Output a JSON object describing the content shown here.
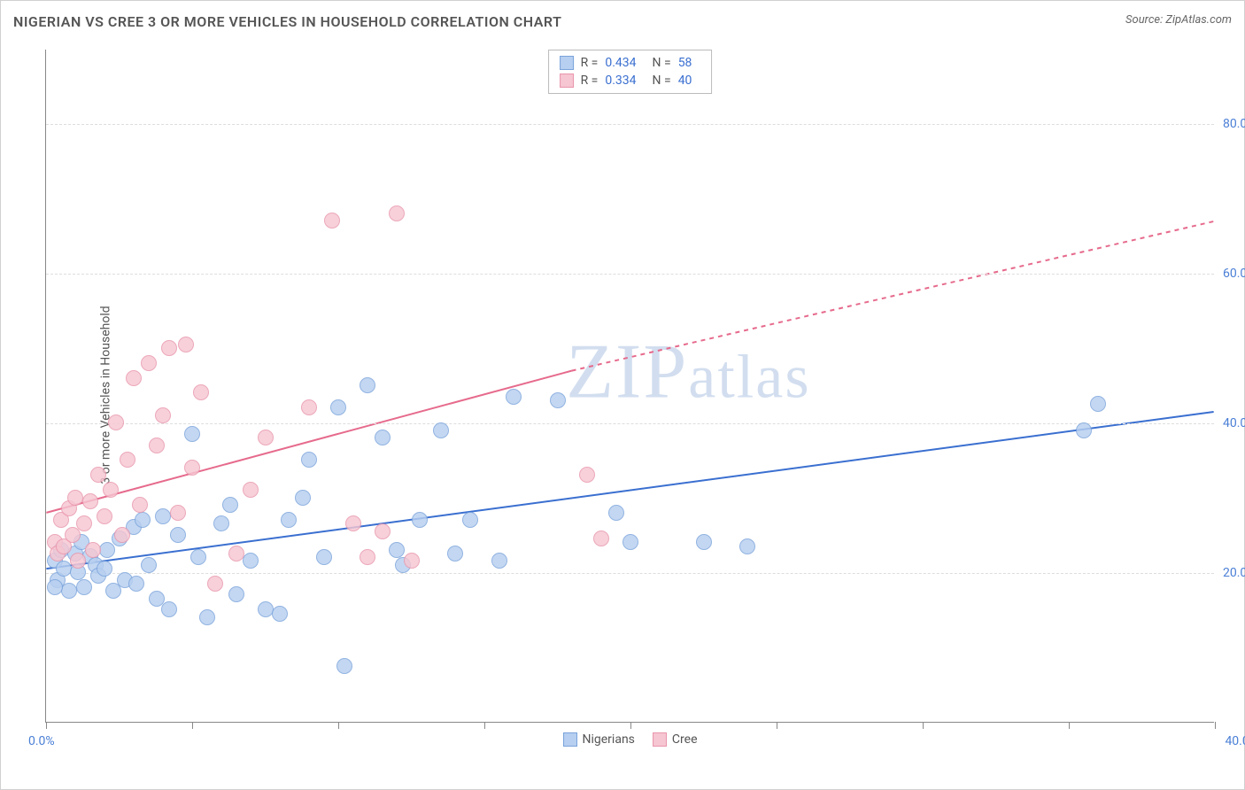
{
  "title": "NIGERIAN VS CREE 3 OR MORE VEHICLES IN HOUSEHOLD CORRELATION CHART",
  "source": "Source: ZipAtlas.com",
  "watermark": "ZIPatlas",
  "chart": {
    "type": "scatter",
    "ylabel": "3 or more Vehicles in Household",
    "xlim": [
      0,
      40
    ],
    "ylim": [
      0,
      90
    ],
    "xtick_step_minor": 5,
    "xtick_labels": {
      "0": "0.0%",
      "40": "40.0%"
    },
    "ytick_positions": [
      20,
      40,
      60,
      80
    ],
    "ytick_labels": [
      "20.0%",
      "40.0%",
      "60.0%",
      "80.0%"
    ],
    "grid_color": "#e5e5e5",
    "axis_color": "#888888",
    "background_color": "#ffffff",
    "label_color": "#4a7fd6",
    "title_color": "#555555",
    "series": [
      {
        "name": "Nigerians",
        "color_fill": "#b7cff0",
        "color_stroke": "#7aa3db",
        "r_label": "R =",
        "r_value": "0.434",
        "n_label": "N =",
        "n_value": "58",
        "trend": {
          "x1": 0,
          "y1": 20.5,
          "x2": 40,
          "y2": 41.5,
          "color": "#3a6fd0",
          "width": 2,
          "dash_after_x": 40
        },
        "point_radius": 9,
        "points": [
          [
            0.3,
            21.5
          ],
          [
            0.4,
            19
          ],
          [
            0.5,
            23
          ],
          [
            0.6,
            20.5
          ],
          [
            0.8,
            17.5
          ],
          [
            1.0,
            22.5
          ],
          [
            1.1,
            20
          ],
          [
            1.2,
            24
          ],
          [
            1.3,
            18
          ],
          [
            1.5,
            22.2
          ],
          [
            1.7,
            21
          ],
          [
            1.8,
            19.5
          ],
          [
            2.0,
            20.5
          ],
          [
            2.1,
            23
          ],
          [
            2.3,
            17.5
          ],
          [
            2.5,
            24.5
          ],
          [
            2.7,
            19
          ],
          [
            3.0,
            26
          ],
          [
            3.1,
            18.5
          ],
          [
            3.3,
            27
          ],
          [
            3.5,
            21
          ],
          [
            3.8,
            16.5
          ],
          [
            4.0,
            27.5
          ],
          [
            4.2,
            15
          ],
          [
            4.5,
            25
          ],
          [
            5.0,
            38.5
          ],
          [
            5.2,
            22
          ],
          [
            5.5,
            14
          ],
          [
            6.0,
            26.5
          ],
          [
            6.3,
            29
          ],
          [
            6.5,
            17
          ],
          [
            7.0,
            21.5
          ],
          [
            7.5,
            15
          ],
          [
            8.0,
            14.5
          ],
          [
            8.3,
            27
          ],
          [
            8.8,
            30
          ],
          [
            9.0,
            35
          ],
          [
            9.5,
            22
          ],
          [
            10.0,
            42
          ],
          [
            10.2,
            7.5
          ],
          [
            11.0,
            45
          ],
          [
            11.5,
            38
          ],
          [
            12.0,
            23
          ],
          [
            12.2,
            21
          ],
          [
            12.8,
            27
          ],
          [
            13.5,
            39
          ],
          [
            14.0,
            22.5
          ],
          [
            14.5,
            27
          ],
          [
            15.5,
            21.5
          ],
          [
            16.0,
            43.5
          ],
          [
            17.5,
            43
          ],
          [
            19.5,
            28
          ],
          [
            20.0,
            24
          ],
          [
            22.5,
            24
          ],
          [
            24.0,
            23.5
          ],
          [
            35.5,
            39
          ],
          [
            36.0,
            42.5
          ],
          [
            0.3,
            18
          ]
        ]
      },
      {
        "name": "Cree",
        "color_fill": "#f6c6d2",
        "color_stroke": "#e995ab",
        "r_label": "R =",
        "r_value": "0.334",
        "n_label": "N =",
        "n_value": "40",
        "trend": {
          "x1": 0,
          "y1": 28,
          "x2": 18,
          "y2": 47,
          "dash_x2": 40,
          "dash_y2": 67,
          "color": "#e66a8c",
          "width": 2
        },
        "point_radius": 9,
        "points": [
          [
            0.3,
            24
          ],
          [
            0.4,
            22.5
          ],
          [
            0.5,
            27
          ],
          [
            0.6,
            23.5
          ],
          [
            0.8,
            28.5
          ],
          [
            0.9,
            25
          ],
          [
            1.0,
            30
          ],
          [
            1.1,
            21.5
          ],
          [
            1.3,
            26.5
          ],
          [
            1.5,
            29.5
          ],
          [
            1.6,
            23
          ],
          [
            1.8,
            33
          ],
          [
            2.0,
            27.5
          ],
          [
            2.2,
            31
          ],
          [
            2.4,
            40
          ],
          [
            2.6,
            25
          ],
          [
            2.8,
            35
          ],
          [
            3.0,
            46
          ],
          [
            3.2,
            29
          ],
          [
            3.5,
            48
          ],
          [
            3.8,
            37
          ],
          [
            4.0,
            41
          ],
          [
            4.2,
            50
          ],
          [
            4.5,
            28
          ],
          [
            4.8,
            50.5
          ],
          [
            5.0,
            34
          ],
          [
            5.3,
            44
          ],
          [
            5.8,
            18.5
          ],
          [
            6.5,
            22.5
          ],
          [
            7.0,
            31
          ],
          [
            7.5,
            38
          ],
          [
            9.0,
            42
          ],
          [
            9.8,
            67
          ],
          [
            10.5,
            26.5
          ],
          [
            11.0,
            22
          ],
          [
            11.5,
            25.5
          ],
          [
            12.0,
            68
          ],
          [
            12.5,
            21.5
          ],
          [
            18.5,
            33
          ],
          [
            19.0,
            24.5
          ]
        ]
      }
    ]
  }
}
